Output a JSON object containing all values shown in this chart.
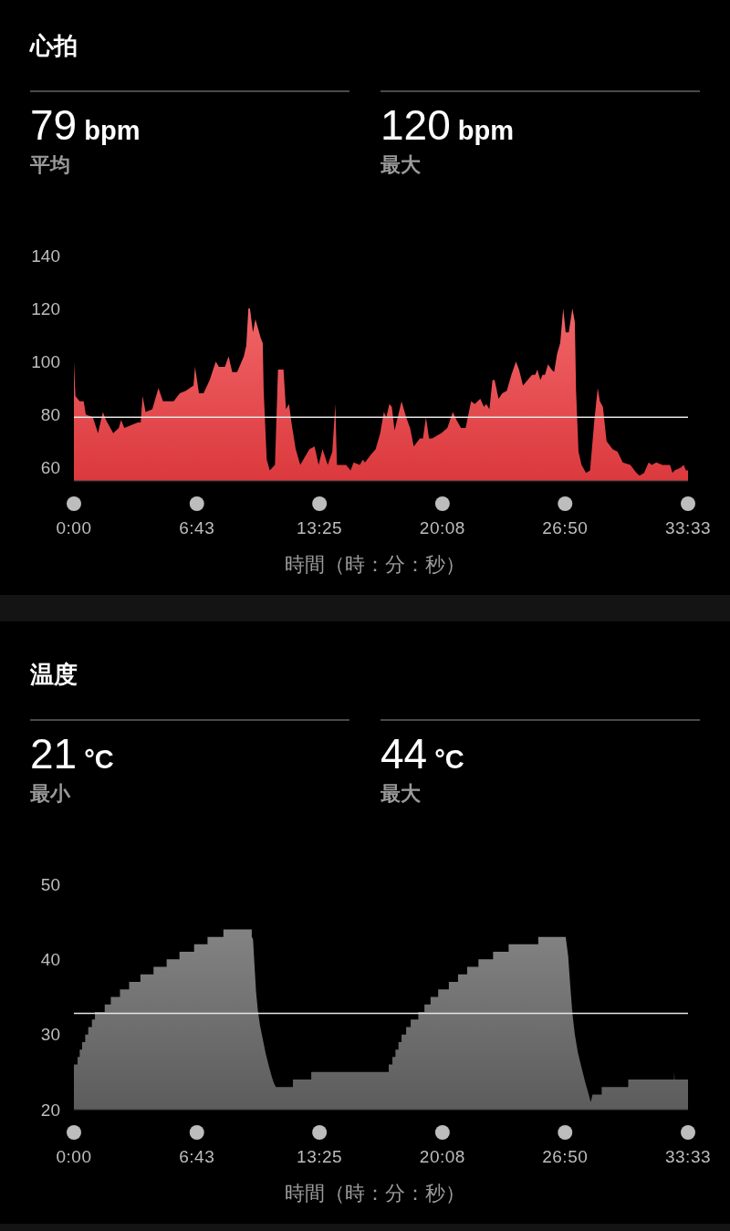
{
  "chart_data": [
    {
      "type": "area",
      "title": "心拍",
      "annotations": [
        "79 bpm",
        "平均",
        "120 bpm",
        "最大"
      ],
      "xlabel": "時間（時：分：秒）",
      "color": "#ee3e42",
      "xlim": [
        0,
        2013
      ],
      "xticks": [
        {
          "value": 0,
          "label": "0:00"
        },
        {
          "value": 403,
          "label": "6:43"
        },
        {
          "value": 805,
          "label": "13:25"
        },
        {
          "value": 1208,
          "label": "20:08"
        },
        {
          "value": 1610,
          "label": "26:50"
        },
        {
          "value": 2013,
          "label": "33:33"
        }
      ],
      "ylim": [
        55,
        140
      ],
      "yticks": [
        60,
        80,
        100,
        120,
        140
      ],
      "ref_lines": [
        {
          "axis": "y",
          "value": 79,
          "color": "#e6e6e6"
        }
      ],
      "x": [
        0,
        5,
        12,
        19,
        32,
        39,
        62,
        79,
        95,
        105,
        129,
        147,
        155,
        165,
        187,
        209,
        219,
        225,
        235,
        257,
        277,
        292,
        327,
        347,
        367,
        392,
        397,
        410,
        425,
        445,
        465,
        475,
        495,
        507,
        519,
        535,
        557,
        565,
        572,
        577,
        587,
        595,
        612,
        619,
        622,
        632,
        642,
        659,
        669,
        687,
        695,
        705,
        713,
        727,
        742,
        757,
        772,
        789,
        802,
        815,
        832,
        847,
        857,
        862,
        892,
        907,
        917,
        937,
        947,
        954,
        974,
        989,
        1004,
        1016,
        1024,
        1034,
        1042,
        1051,
        1074,
        1089,
        1102,
        1114,
        1134,
        1144,
        1154,
        1164,
        1174,
        1204,
        1224,
        1242,
        1254,
        1269,
        1284,
        1302,
        1314,
        1332,
        1344,
        1352,
        1362,
        1372,
        1379,
        1392,
        1404,
        1419,
        1434,
        1449,
        1459,
        1472,
        1494,
        1502,
        1512,
        1519,
        1529,
        1536,
        1544,
        1554,
        1566,
        1574,
        1584,
        1594,
        1604,
        1612,
        1622,
        1634,
        1642,
        1646,
        1654,
        1664,
        1679,
        1692,
        1706,
        1717,
        1724,
        1734,
        1746,
        1766,
        1782,
        1799,
        1824,
        1844,
        1854,
        1869,
        1884,
        1894,
        1909,
        1929,
        1954,
        1962,
        1969,
        1989,
        1999,
        2006,
        2013
      ],
      "values": [
        100,
        87,
        86,
        85,
        85,
        80,
        79,
        73,
        81,
        78,
        73,
        75,
        78,
        75,
        76,
        77,
        77,
        87,
        81,
        82,
        90,
        85,
        85,
        88,
        89,
        91,
        98,
        88,
        88,
        93,
        100,
        98,
        98,
        102,
        96,
        96,
        102,
        106,
        120,
        120,
        111,
        116,
        109,
        107,
        89,
        63,
        59,
        61,
        97,
        97,
        82,
        84,
        77,
        67,
        61,
        64,
        67,
        68,
        61,
        67,
        61,
        66,
        84,
        61,
        61,
        59,
        62,
        61,
        63,
        62,
        65,
        67,
        73,
        81,
        79,
        84,
        83,
        74,
        85,
        79,
        75,
        68,
        71,
        71,
        79,
        71,
        71,
        73,
        75,
        81,
        78,
        75,
        75,
        85,
        84,
        86,
        83,
        84,
        82,
        93,
        93,
        86,
        88,
        89,
        95,
        100,
        97,
        91,
        94,
        95,
        95,
        97,
        93,
        95,
        95,
        99,
        97,
        96,
        103,
        107,
        120,
        111,
        111,
        120,
        115,
        89,
        66,
        61,
        58,
        59,
        78,
        90,
        85,
        83,
        70,
        67,
        66,
        62,
        61,
        58,
        57,
        58,
        62,
        61,
        62,
        61,
        61,
        58,
        59,
        60,
        61,
        59,
        59
      ]
    },
    {
      "type": "area",
      "title": "温度",
      "annotations": [
        "21 °C",
        "最小",
        "44 °C",
        "最大"
      ],
      "xlabel": "時間（時：分：秒）",
      "color": "#646464",
      "xlim": [
        0,
        2013
      ],
      "xticks": [
        {
          "value": 0,
          "label": "0:00"
        },
        {
          "value": 403,
          "label": "6:43"
        },
        {
          "value": 805,
          "label": "13:25"
        },
        {
          "value": 1208,
          "label": "20:08"
        },
        {
          "value": 1610,
          "label": "26:50"
        },
        {
          "value": 2013,
          "label": "33:33"
        }
      ],
      "ylim": [
        20,
        50
      ],
      "yticks": [
        20,
        30,
        40,
        50
      ],
      "ref_lines": [
        {
          "axis": "y",
          "value": 32.8,
          "color": "#e6e6e6"
        }
      ],
      "x": [
        0,
        12,
        12,
        19,
        19,
        27,
        27,
        37,
        37,
        47,
        47,
        59,
        59,
        69,
        69,
        101,
        101,
        121,
        121,
        151,
        151,
        181,
        181,
        218,
        218,
        261,
        261,
        304,
        304,
        346,
        346,
        394,
        394,
        438,
        438,
        490,
        490,
        583,
        583,
        587,
        593,
        597,
        603,
        610,
        620,
        629,
        639,
        649,
        656,
        662,
        718,
        718,
        778,
        778,
        1032,
        1032,
        1044,
        1044,
        1054,
        1054,
        1064,
        1064,
        1074,
        1074,
        1089,
        1089,
        1104,
        1104,
        1129,
        1129,
        1149,
        1149,
        1169,
        1169,
        1194,
        1194,
        1229,
        1229,
        1259,
        1259,
        1289,
        1289,
        1326,
        1326,
        1374,
        1374,
        1425,
        1425,
        1522,
        1522,
        1612,
        1620,
        1627,
        1634,
        1642,
        1652,
        1664,
        1677,
        1687,
        1694,
        1700,
        1730,
        1730,
        1817,
        1817,
        1967,
        1968,
        1969,
        2013
      ],
      "values": [
        26,
        26,
        27,
        27,
        28,
        28,
        29,
        29,
        30,
        30,
        31,
        31,
        32,
        32,
        33,
        33,
        34,
        34,
        35,
        35,
        36,
        36,
        37,
        37,
        38,
        38,
        39,
        39,
        40,
        40,
        41,
        41,
        42,
        42,
        43,
        43,
        44,
        44,
        43,
        42.7,
        38.5,
        35.7,
        33.2,
        31.2,
        29.2,
        27.4,
        25.8,
        24.3,
        23.5,
        23,
        23,
        24,
        24,
        25,
        25,
        26,
        26,
        27,
        27,
        28,
        28,
        29,
        29,
        30,
        30,
        31,
        31,
        32,
        32,
        33,
        33,
        34,
        34,
        35,
        35,
        36,
        36,
        37,
        37,
        38,
        38,
        39,
        39,
        40,
        40,
        41,
        41,
        42,
        42,
        43,
        43,
        40.5,
        36.5,
        32.8,
        30,
        27.6,
        25.6,
        23.5,
        22.1,
        21,
        22,
        22,
        23,
        23,
        24,
        24,
        25,
        24,
        24
      ]
    }
  ]
}
